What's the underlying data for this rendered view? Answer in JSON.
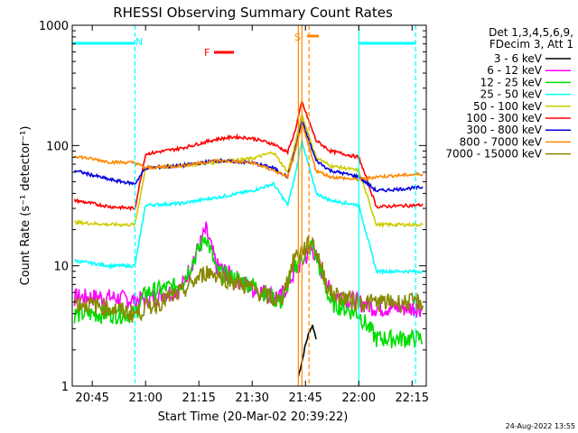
{
  "chart_data": {
    "type": "line",
    "title": "RHESSI Observing Summary Count Rates",
    "xlabel": "Start Time (20-Mar-02 20:39:22)",
    "ylabel": "Count Rate (s⁻¹ detector⁻¹)",
    "yscale": "log",
    "ylim": [
      1,
      1000
    ],
    "xlim_minutes": [
      "20:39:22",
      "22:19:00"
    ],
    "x_tick_labels": [
      "20:45",
      "21:00",
      "21:15",
      "21:30",
      "21:45",
      "22:00",
      "22:15"
    ],
    "y_tick_labels": [
      "1",
      "10",
      "100",
      "1000"
    ],
    "grid": false,
    "legend_placement": "right",
    "legend_header": [
      "Det 1,3,4,5,6,9,",
      "FDecim 3, Att 1"
    ],
    "annotations": {
      "night_marker": "N",
      "saa_marker": "S",
      "flare_marker": "F"
    },
    "series": [
      {
        "name": "3 - 6 keV",
        "color": "#000000",
        "x": [
          "21:43",
          "21:44",
          "21:45",
          "21:46",
          "21:47",
          "21:48"
        ],
        "values": [
          1.2,
          1.6,
          2.2,
          2.8,
          3.2,
          2.5
        ]
      },
      {
        "name": "6 - 12 keV",
        "color": "#ff00ff",
        "x": [
          "20:40",
          "20:50",
          "20:57",
          "21:00",
          "21:10",
          "21:17",
          "21:20",
          "21:30",
          "21:38",
          "21:42",
          "21:47",
          "21:52",
          "22:00",
          "22:05",
          "22:18"
        ],
        "values": [
          5.5,
          5.5,
          5.2,
          5.3,
          6.5,
          20,
          10,
          6.5,
          5.5,
          9,
          14,
          6,
          5,
          4.5,
          4.5
        ]
      },
      {
        "name": "12 - 25 keV",
        "color": "#00dd00",
        "x": [
          "20:40",
          "20:50",
          "20:57",
          "21:00",
          "21:10",
          "21:17",
          "21:20",
          "21:30",
          "21:38",
          "21:42",
          "21:47",
          "21:52",
          "22:00",
          "22:05",
          "22:18"
        ],
        "values": [
          4.0,
          4.0,
          4.0,
          6.0,
          7.0,
          18,
          9,
          7,
          5,
          10,
          15,
          5,
          4,
          2.5,
          2.5
        ]
      },
      {
        "name": "25 - 50 keV",
        "color": "#00ffff",
        "x": [
          "20:40",
          "20:50",
          "20:57",
          "21:00",
          "21:10",
          "21:20",
          "21:30",
          "21:36",
          "21:40",
          "21:42",
          "21:44",
          "21:48",
          "21:52",
          "22:00",
          "22:05",
          "22:18"
        ],
        "values": [
          11,
          10,
          10,
          32,
          33,
          37,
          42,
          48,
          32,
          55,
          110,
          40,
          35,
          32,
          9,
          9
        ]
      },
      {
        "name": "50 - 100 keV",
        "color": "#cccc00",
        "x": [
          "20:40",
          "20:50",
          "20:57",
          "21:00",
          "21:10",
          "21:20",
          "21:30",
          "21:36",
          "21:40",
          "21:42",
          "21:44",
          "21:48",
          "21:52",
          "22:00",
          "22:05",
          "22:18"
        ],
        "values": [
          23,
          22,
          22,
          65,
          68,
          73,
          78,
          88,
          60,
          100,
          180,
          80,
          68,
          62,
          22,
          22
        ]
      },
      {
        "name": "100 - 300 keV",
        "color": "#ff0000",
        "x": [
          "20:40",
          "20:50",
          "20:57",
          "21:00",
          "21:10",
          "21:20",
          "21:25",
          "21:30",
          "21:36",
          "21:40",
          "21:42",
          "21:44",
          "21:48",
          "21:52",
          "22:00",
          "22:05",
          "22:18"
        ],
        "values": [
          35,
          31,
          30,
          85,
          95,
          113,
          118,
          115,
          103,
          88,
          130,
          230,
          110,
          90,
          80,
          31,
          32
        ]
      },
      {
        "name": "300 - 800 keV",
        "color": "#0000dd",
        "x": [
          "20:40",
          "20:50",
          "20:57",
          "21:00",
          "21:10",
          "21:20",
          "21:30",
          "21:36",
          "21:40",
          "21:42",
          "21:44",
          "21:48",
          "21:52",
          "22:00",
          "22:05",
          "22:18"
        ],
        "values": [
          62,
          52,
          48,
          65,
          68,
          75,
          72,
          65,
          55,
          90,
          160,
          75,
          62,
          55,
          42,
          45
        ]
      },
      {
        "name": "800 - 7000 keV",
        "color": "#ff8800",
        "x": [
          "20:40",
          "20:50",
          "20:57",
          "21:00",
          "21:10",
          "21:20",
          "21:30",
          "21:36",
          "21:40",
          "21:42",
          "21:44",
          "21:48",
          "21:52",
          "22:00",
          "22:05",
          "22:18"
        ],
        "values": [
          82,
          73,
          72,
          65,
          68,
          75,
          72,
          62,
          55,
          85,
          150,
          62,
          55,
          52,
          55,
          58
        ]
      },
      {
        "name": "7000 - 15000 keV",
        "color": "#888800",
        "x": [
          "20:40",
          "20:50",
          "20:57",
          "21:00",
          "21:10",
          "21:17",
          "21:20",
          "21:30",
          "21:38",
          "21:42",
          "21:47",
          "21:52",
          "22:00",
          "22:05",
          "22:18"
        ],
        "values": [
          5.0,
          4.5,
          4.0,
          4.5,
          6.0,
          9,
          8.5,
          6.5,
          5,
          12,
          16,
          6,
          5,
          5,
          5
        ]
      }
    ],
    "vertical_markers": [
      {
        "label": "N",
        "color": "#00ffff",
        "times": [
          "20:57",
          "22:00",
          "22:16"
        ]
      },
      {
        "label": "S",
        "color": "#ff8800",
        "times": [
          "21:43",
          "21:44",
          "21:46"
        ]
      }
    ],
    "footer_date": "24-Aug-2022 13:55"
  }
}
